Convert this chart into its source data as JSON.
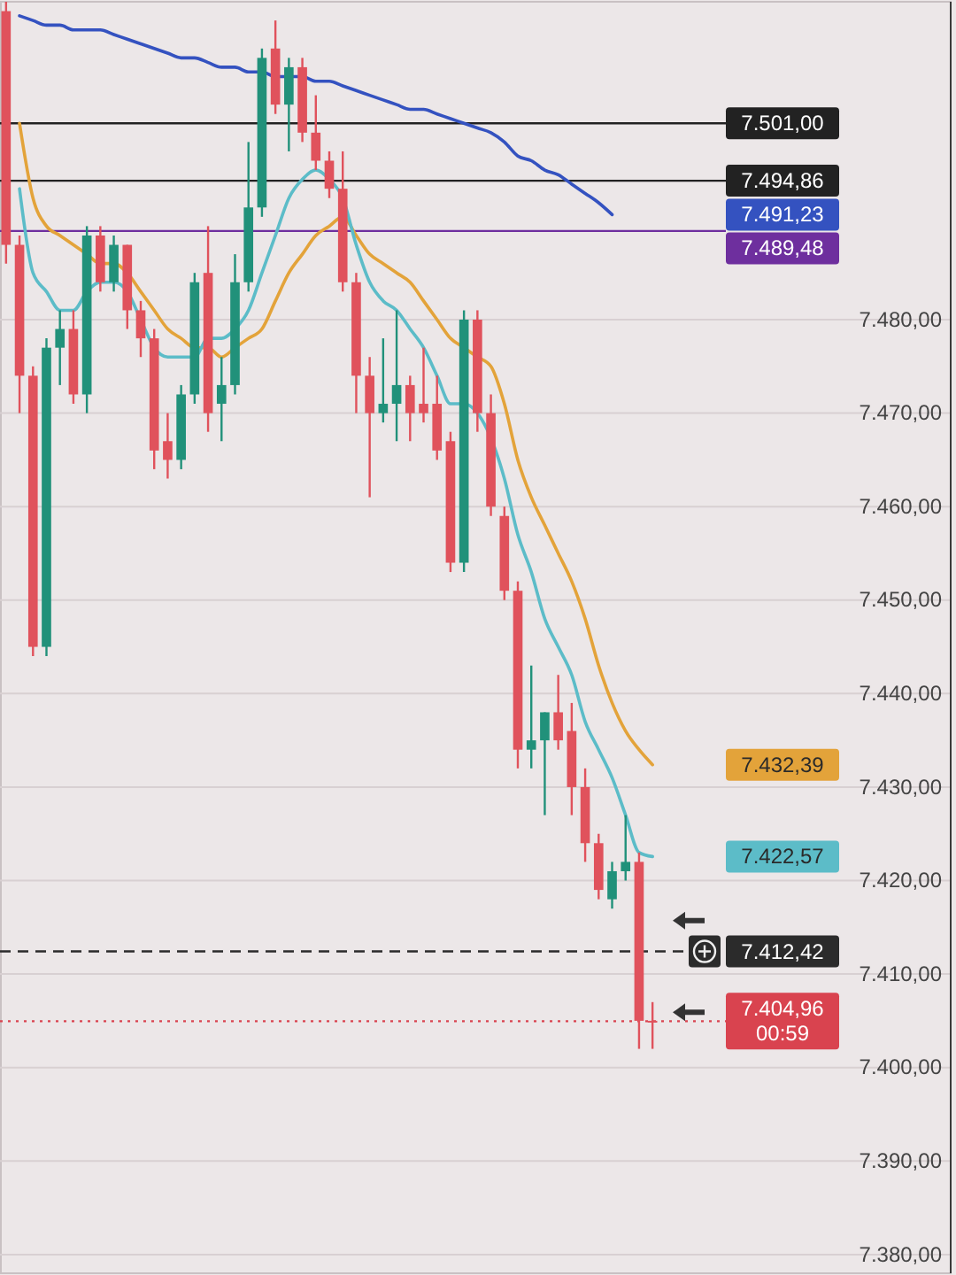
{
  "chart_data": {
    "type": "candlestick",
    "categories": [
      null,
      null,
      null,
      null,
      null,
      null,
      null,
      null,
      null,
      null,
      null,
      null,
      null,
      null,
      null,
      null,
      null,
      null,
      null,
      null,
      null,
      null,
      null,
      null,
      null,
      null,
      null,
      null,
      null,
      null,
      null,
      null,
      null,
      null,
      null,
      null,
      null,
      null,
      null,
      null,
      null,
      null,
      null,
      null,
      null,
      null,
      null,
      null,
      null
    ],
    "ohlc": [
      [
        7513,
        7514,
        7486,
        7488
      ],
      [
        7488,
        7489,
        7470,
        7474
      ],
      [
        7474,
        7475,
        7444,
        7445
      ],
      [
        7445,
        7478,
        7444,
        7477
      ],
      [
        7477,
        7481,
        7473,
        7479
      ],
      [
        7479,
        7481,
        7471,
        7472
      ],
      [
        7472,
        7490,
        7470,
        7489
      ],
      [
        7489,
        7490,
        7483,
        7484
      ],
      [
        7484,
        7489,
        7483,
        7488
      ],
      [
        7488,
        7488,
        7479,
        7481
      ],
      [
        7481,
        7482,
        7476,
        7478
      ],
      [
        7478,
        7479,
        7464,
        7466
      ],
      [
        7467,
        7470,
        7463,
        7465
      ],
      [
        7465,
        7473,
        7464,
        7472
      ],
      [
        7472,
        7485,
        7471,
        7484
      ],
      [
        7485,
        7490,
        7468,
        7470
      ],
      [
        7471,
        7476,
        7467,
        7473
      ],
      [
        7473,
        7487,
        7472,
        7484
      ],
      [
        7484,
        7499,
        7483,
        7492
      ],
      [
        7492,
        7509,
        7491,
        7508
      ],
      [
        7509,
        7512,
        7502,
        7503
      ],
      [
        7503,
        7508,
        7498,
        7507
      ],
      [
        7507,
        7508,
        7499,
        7500
      ],
      [
        7500,
        7504,
        7496,
        7497
      ],
      [
        7497,
        7498,
        7493,
        7494
      ],
      [
        7494,
        7498,
        7483,
        7484
      ],
      [
        7484,
        7485,
        7470,
        7474
      ],
      [
        7474,
        7476,
        7461,
        7470
      ],
      [
        7470,
        7478,
        7469,
        7471
      ],
      [
        7471,
        7481,
        7467,
        7473
      ],
      [
        7473,
        7474,
        7467,
        7470
      ],
      [
        7471,
        7477,
        7469,
        7470
      ],
      [
        7471,
        7474,
        7465,
        7466
      ],
      [
        7467,
        7468,
        7453,
        7454
      ],
      [
        7454,
        7481,
        7453,
        7480
      ],
      [
        7480,
        7481,
        7468,
        7470
      ],
      [
        7470,
        7472,
        7459,
        7460
      ],
      [
        7459,
        7460,
        7450,
        7451
      ],
      [
        7451,
        7452,
        7432,
        7434
      ],
      [
        7434,
        7443,
        7432,
        7435
      ],
      [
        7435,
        7438,
        7427,
        7438
      ],
      [
        7438,
        7442,
        7434,
        7435
      ],
      [
        7436,
        7439,
        7427,
        7430
      ],
      [
        7430,
        7432,
        7422,
        7424
      ],
      [
        7424,
        7425,
        7418,
        7419
      ],
      [
        7418,
        7422,
        7417,
        7421
      ],
      [
        7421,
        7427,
        7420,
        7422
      ],
      [
        7422,
        7423,
        7402,
        7405
      ],
      [
        7405,
        7407,
        7402,
        7404.96
      ]
    ],
    "colors": [
      "#e0525c",
      "#e0525c",
      "#e0525c",
      "#21917a",
      "#21917a",
      "#e0525c",
      "#21917a",
      "#e0525c",
      "#21917a",
      "#e0525c",
      "#e0525c",
      "#e0525c",
      "#e0525c",
      "#21917a",
      "#21917a",
      "#e0525c",
      "#21917a",
      "#21917a",
      "#21917a",
      "#21917a",
      "#e0525c",
      "#21917a",
      "#e0525c",
      "#e0525c",
      "#e0525c",
      "#e0525c",
      "#e0525c",
      "#e0525c",
      "#21917a",
      "#21917a",
      "#e0525c",
      "#e0525c",
      "#e0525c",
      "#e0525c",
      "#21917a",
      "#e0525c",
      "#e0525c",
      "#e0525c",
      "#e0525c",
      "#21917a",
      "#21917a",
      "#e0525c",
      "#e0525c",
      "#e0525c",
      "#e0525c",
      "#21917a",
      "#21917a",
      "#e0525c",
      "#e0525c"
    ],
    "series": [
      {
        "type": "line",
        "color": "#3452c0",
        "values": [
          null,
          7512.5,
          7512,
          7511.5,
          7511.5,
          7511,
          7511,
          7511,
          7510.5,
          7510,
          7509.5,
          7509,
          7508.5,
          7508,
          7508,
          7507.5,
          7507,
          7507,
          7506.5,
          7506.5,
          7506,
          7506,
          7506,
          7505.5,
          7505.5,
          7505,
          7504.5,
          7504,
          7503.5,
          7503,
          7502.5,
          7502.5,
          7502,
          7501.5,
          7501,
          7500.5,
          7500,
          7499,
          7497.5,
          7497,
          7496,
          7495.5,
          7494.5,
          7493.5,
          7492.5,
          7491.23,
          null,
          null,
          null
        ]
      },
      {
        "type": "line",
        "color": "#e3a33a",
        "values": [
          null,
          7501,
          7493,
          7490,
          7489,
          7488,
          7487,
          7486,
          7486,
          7485,
          7483,
          7481,
          7479,
          7478,
          7477,
          7477,
          7476,
          7477,
          7478,
          7479,
          7482,
          7485,
          7487,
          7489,
          7490,
          7491,
          7489,
          7487,
          7486,
          7485,
          7484,
          7482,
          7480,
          7478,
          7477,
          7476,
          7475,
          7471,
          7465,
          7461,
          7458,
          7455,
          7452,
          7448,
          7443,
          7439,
          7436,
          7434,
          7432.39
        ]
      },
      {
        "type": "line",
        "color": "#5cbcc8",
        "values": [
          null,
          7494,
          7485,
          7483,
          7481,
          7481,
          7483,
          7484,
          7484,
          7483,
          7480,
          7477,
          7476,
          7476,
          7476,
          7478,
          7478,
          7479,
          7481,
          7485,
          7489,
          7493,
          7495,
          7496,
          7495,
          7493,
          7488,
          7484,
          7482,
          7481,
          7479,
          7477,
          7474,
          7471,
          7471,
          7470,
          null,
          7463,
          7457,
          7453,
          7448,
          7445,
          7442,
          7437,
          7434,
          7431,
          7427,
          7423,
          7422.57
        ]
      }
    ],
    "annotations": [
      "7.491,23",
      "7.432,39",
      "7.422,57"
    ],
    "ylim": [
      7378,
      7514
    ],
    "yticks": [
      {
        "value": 7380,
        "label": "7.380,00"
      },
      {
        "value": 7390,
        "label": "7.390,00"
      },
      {
        "value": 7400,
        "label": "7.400,00"
      },
      {
        "value": 7410,
        "label": "7.410,00"
      },
      {
        "value": 7420,
        "label": "7.420,00"
      },
      {
        "value": 7430,
        "label": "7.430,00"
      },
      {
        "value": 7440,
        "label": "7.440,00"
      },
      {
        "value": 7450,
        "label": "7.450,00"
      },
      {
        "value": 7460,
        "label": "7.460,00"
      },
      {
        "value": 7470,
        "label": "7.470,00"
      },
      {
        "value": 7480,
        "label": "7.480,00"
      }
    ],
    "grid": "y",
    "tick_labels": "y",
    "ref_lines": [
      {
        "axis": "y",
        "value": 7501,
        "label": "7.501,00",
        "color": "#222222",
        "line_style": "solid"
      },
      {
        "axis": "y",
        "value": 7494.86,
        "label": "7.494,86",
        "color": "#222222",
        "line_style": "solid"
      },
      {
        "axis": "y",
        "value": 7489.48,
        "label": "7.489,48",
        "color": "#6e2f9e",
        "line_style": "solid"
      },
      {
        "axis": "y",
        "value": 7412.42,
        "label": "7.412,42",
        "color": "#2b2b2b",
        "line_style": "dashed"
      },
      {
        "axis": "y",
        "value": 7404.96,
        "label": "7.404,96\n00:59",
        "color": "#d9434f",
        "line_style": "dotted"
      }
    ]
  }
}
